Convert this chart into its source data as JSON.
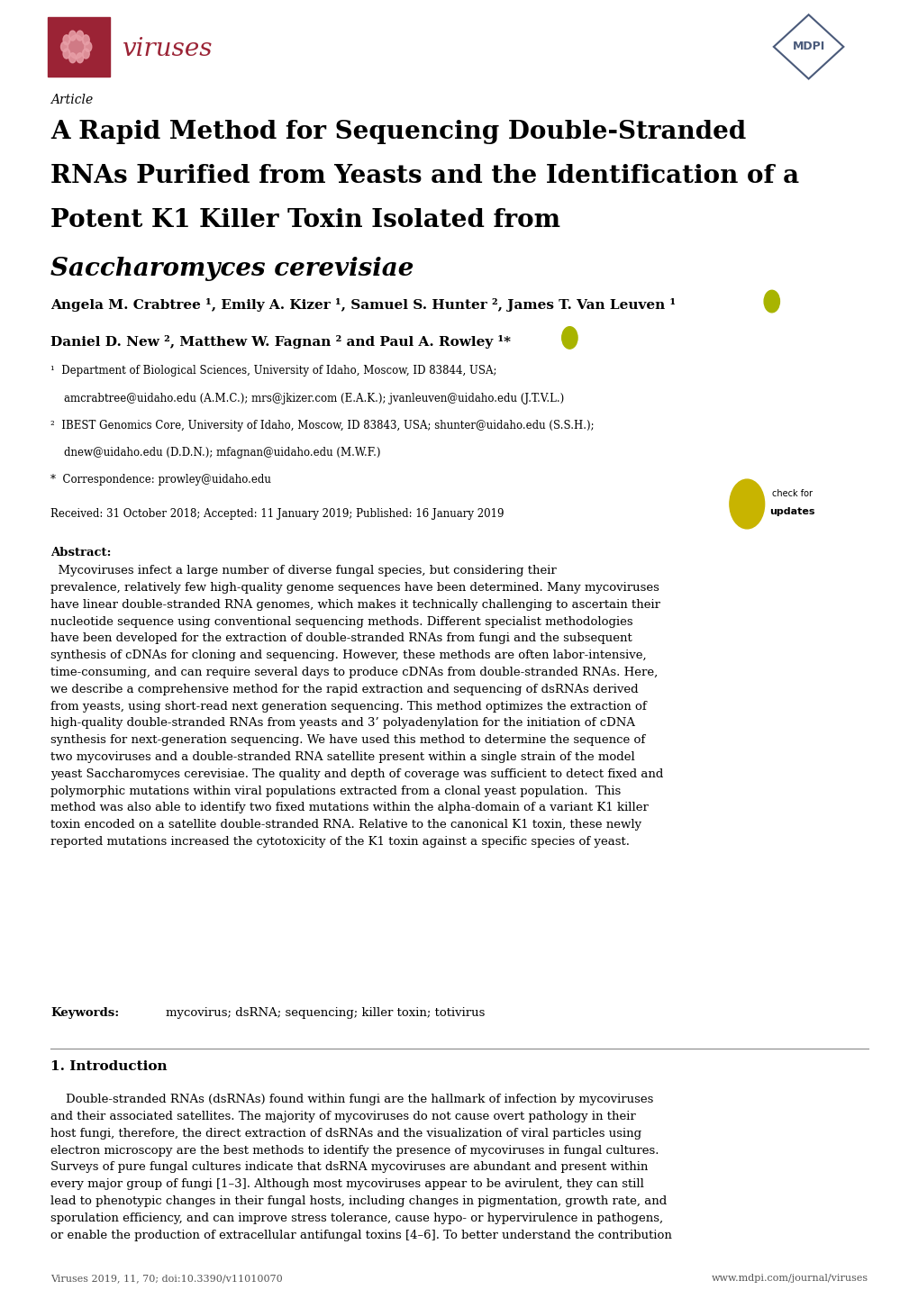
{
  "bg_color": "#ffffff",
  "journal_name": "viruses",
  "journal_color": "#9b2335",
  "mdpi_color": "#4a5a7a",
  "article_label": "Article",
  "title_line1": "A Rapid Method for Sequencing Double-Stranded",
  "title_line2": "RNAs Purified from Yeasts and the Identification of a",
  "title_line3": "Potent K1 Killer Toxin Isolated from",
  "title_italic": "Saccharomyces cerevisiae",
  "received": "Received: 31 October 2018; Accepted: 11 January 2019; Published: 16 January 2019",
  "abstract_title": "Abstract:",
  "keywords_label": "Keywords:",
  "keywords_text": "mycovirus; dsRNA; sequencing; killer toxin; totivirus",
  "intro_title": "1. Introduction",
  "footer_left": "Viruses 2019, 11, 70; doi:10.3390/v11010070",
  "footer_right": "www.mdpi.com/journal/viruses",
  "orcid_color": "#a8b400",
  "separator_color": "#888888",
  "footer_color": "#555555"
}
